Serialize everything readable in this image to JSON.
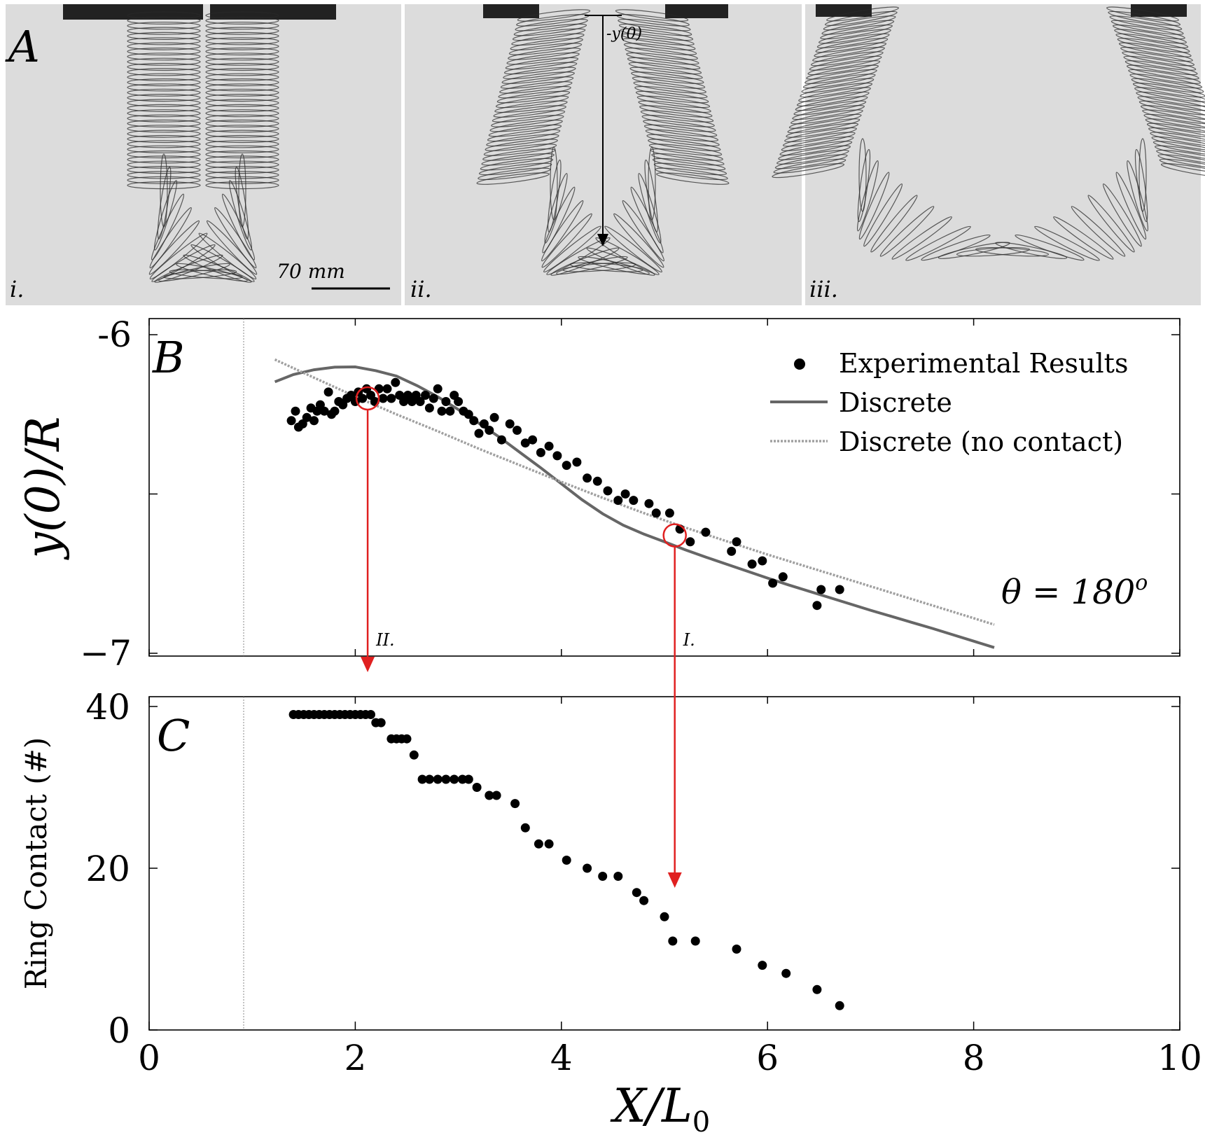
{
  "panel_a": {
    "letter": "A",
    "photos": [
      {
        "label": "i."
      },
      {
        "label": "ii.",
        "y0_label": "-y(0)"
      },
      {
        "label": "iii."
      }
    ],
    "scale_bar": "70 mm"
  },
  "colors": {
    "accent": "#e02020",
    "discrete": "#666666",
    "no_contact": "#a0a0a0",
    "points": "#000000"
  },
  "chart_data": [
    {
      "type": "scatter",
      "panel": "B",
      "ylabel": "y(0)/R",
      "ylim": [
        -7,
        -6
      ],
      "xlim": [
        0,
        10
      ],
      "yticks": [
        -6,
        -6.5,
        -7
      ],
      "ytick_labels": [
        "-6",
        "",
        "−7"
      ],
      "annotation": "θ = 180°",
      "theta_text": "θ = 180",
      "theta_sup": "o",
      "legend_position": "top-right",
      "legend": [
        "Experimental Results",
        "Discrete",
        "Discrete (no contact)"
      ],
      "marked_points": [
        {
          "label": "II.",
          "x": 2.12,
          "y": -6.2
        },
        {
          "label": "I.",
          "x": 5.1,
          "y": -6.63
        }
      ],
      "series": [
        {
          "name": "Experimental Results",
          "kind": "points",
          "x": [
            1.38,
            1.42,
            1.45,
            1.49,
            1.53,
            1.57,
            1.6,
            1.63,
            1.66,
            1.7,
            1.74,
            1.77,
            1.8,
            1.84,
            1.88,
            1.92,
            1.96,
            2.0,
            2.03,
            2.07,
            2.11,
            2.15,
            2.19,
            2.23,
            2.27,
            2.31,
            2.35,
            2.39,
            2.43,
            2.47,
            2.51,
            2.55,
            2.59,
            2.63,
            2.68,
            2.72,
            2.76,
            2.8,
            2.84,
            2.88,
            2.92,
            2.96,
            3.0,
            3.05,
            3.1,
            3.15,
            3.2,
            3.25,
            3.3,
            3.35,
            3.42,
            3.5,
            3.57,
            3.65,
            3.72,
            3.8,
            3.88,
            3.96,
            4.05,
            4.15,
            4.25,
            4.35,
            4.45,
            4.55,
            4.62,
            4.7,
            4.85,
            4.92,
            5.05,
            5.15,
            5.25,
            5.4,
            5.65,
            5.7,
            5.85,
            5.95,
            6.05,
            6.15,
            6.48,
            6.52,
            6.7
          ],
          "y": [
            -6.27,
            -6.24,
            -6.29,
            -6.28,
            -6.26,
            -6.23,
            -6.27,
            -6.24,
            -6.22,
            -6.24,
            -6.18,
            -6.25,
            -6.24,
            -6.21,
            -6.22,
            -6.2,
            -6.19,
            -6.21,
            -6.18,
            -6.2,
            -6.17,
            -6.19,
            -6.21,
            -6.17,
            -6.2,
            -6.17,
            -6.2,
            -6.15,
            -6.19,
            -6.21,
            -6.19,
            -6.21,
            -6.19,
            -6.21,
            -6.19,
            -6.23,
            -6.2,
            -6.17,
            -6.24,
            -6.21,
            -6.24,
            -6.19,
            -6.21,
            -6.24,
            -6.25,
            -6.27,
            -6.31,
            -6.28,
            -6.3,
            -6.26,
            -6.33,
            -6.28,
            -6.3,
            -6.34,
            -6.33,
            -6.37,
            -6.35,
            -6.38,
            -6.41,
            -6.4,
            -6.45,
            -6.46,
            -6.49,
            -6.52,
            -6.5,
            -6.52,
            -6.53,
            -6.56,
            -6.56,
            -6.61,
            -6.65,
            -6.62,
            -6.68,
            -6.65,
            -6.72,
            -6.71,
            -6.78,
            -6.76,
            -6.85,
            -6.8,
            -6.8
          ]
        },
        {
          "name": "Discrete",
          "kind": "line",
          "x": [
            1.22,
            1.4,
            1.6,
            1.8,
            2.0,
            2.2,
            2.4,
            2.6,
            2.8,
            3.0,
            3.2,
            3.4,
            3.6,
            3.8,
            4.0,
            4.2,
            4.4,
            4.6,
            4.8,
            5.0,
            5.2,
            5.4,
            5.6,
            5.8,
            6.0,
            6.2,
            6.4,
            6.6,
            6.8,
            7.0,
            7.2,
            7.4,
            7.6,
            7.8,
            8.0,
            8.2
          ],
          "y": [
            -6.148,
            -6.125,
            -6.11,
            -6.102,
            -6.101,
            -6.113,
            -6.13,
            -6.16,
            -6.195,
            -6.235,
            -6.278,
            -6.322,
            -6.37,
            -6.418,
            -6.468,
            -6.518,
            -6.562,
            -6.598,
            -6.626,
            -6.65,
            -6.675,
            -6.698,
            -6.72,
            -6.742,
            -6.764,
            -6.785,
            -6.805,
            -6.825,
            -6.845,
            -6.865,
            -6.884,
            -6.903,
            -6.922,
            -6.942,
            -6.962,
            -6.982
          ]
        },
        {
          "name": "Discrete (no contact)",
          "kind": "line",
          "x": [
            1.22,
            1.6,
            2.0,
            2.4,
            2.8,
            3.2,
            3.6,
            4.0,
            4.4,
            4.8,
            5.2,
            5.6,
            6.0,
            6.4,
            6.8,
            7.2,
            7.6,
            8.0,
            8.2
          ],
          "y": [
            -6.078,
            -6.135,
            -6.194,
            -6.25,
            -6.303,
            -6.358,
            -6.41,
            -6.462,
            -6.512,
            -6.56,
            -6.605,
            -6.648,
            -6.69,
            -6.73,
            -6.77,
            -6.81,
            -6.85,
            -6.89,
            -6.91
          ]
        }
      ]
    },
    {
      "type": "scatter",
      "panel": "C",
      "ylabel": "Ring Contact (#)",
      "xlabel_main": "X/L",
      "xlabel_sub": "0",
      "xlim": [
        0,
        10
      ],
      "ylim": [
        0,
        40
      ],
      "xticks": [
        0,
        2,
        4,
        6,
        8,
        10
      ],
      "yticks": [
        0,
        20,
        40
      ],
      "reference_x": 0.92,
      "series": [
        {
          "name": "Ring Contact",
          "x": [
            1.4,
            1.45,
            1.5,
            1.55,
            1.6,
            1.65,
            1.7,
            1.75,
            1.8,
            1.85,
            1.9,
            1.95,
            2.0,
            2.05,
            2.1,
            2.15,
            2.2,
            2.25,
            2.35,
            2.4,
            2.45,
            2.5,
            2.57,
            2.65,
            2.72,
            2.8,
            2.88,
            2.96,
            3.04,
            3.1,
            3.18,
            3.3,
            3.37,
            3.55,
            3.65,
            3.78,
            3.88,
            4.05,
            4.25,
            4.4,
            4.55,
            4.73,
            4.8,
            5.0,
            5.08,
            5.3,
            5.7,
            5.95,
            6.18,
            6.48,
            6.7
          ],
          "y": [
            39,
            39,
            39,
            39,
            39,
            39,
            39,
            39,
            39,
            39,
            39,
            39,
            39,
            39,
            39,
            39,
            38,
            38,
            36,
            36,
            36,
            36,
            34,
            31,
            31,
            31,
            31,
            31,
            31,
            31,
            30,
            29,
            29,
            28,
            25,
            23,
            23,
            21,
            20,
            19,
            19,
            17,
            16,
            14,
            11,
            11,
            10,
            8,
            7,
            5,
            3
          ]
        }
      ]
    }
  ]
}
